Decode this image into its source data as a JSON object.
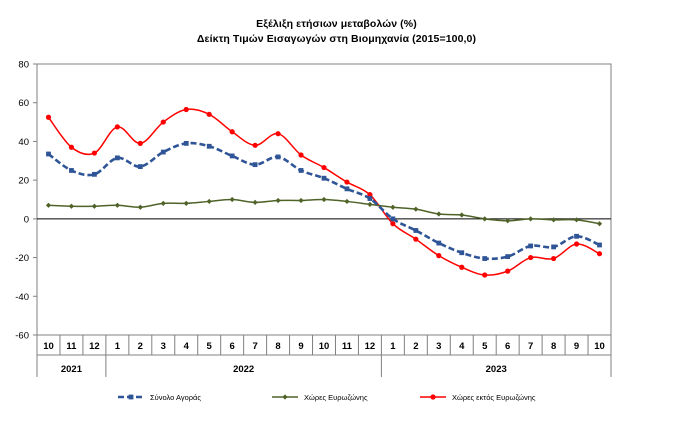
{
  "chart_data": {
    "type": "line",
    "title": "Εξέλιξη ετήσιων μεταβολών (%)",
    "subtitle": "Δείκτη Τιμών Εισαγωγών στη Βιομηχανία (2015=100,0)",
    "categories": [
      "10",
      "11",
      "12",
      "1",
      "2",
      "3",
      "4",
      "5",
      "6",
      "7",
      "8",
      "9",
      "10",
      "11",
      "12",
      "1",
      "2",
      "3",
      "4",
      "5",
      "6",
      "7",
      "8",
      "9",
      "10"
    ],
    "years": [
      {
        "label": "2021",
        "from": 0,
        "to": 2
      },
      {
        "label": "2022",
        "from": 3,
        "to": 14
      },
      {
        "label": "2023",
        "from": 15,
        "to": 24
      }
    ],
    "ylim": [
      -60,
      80
    ],
    "yticks": [
      -60,
      -40,
      -20,
      0,
      20,
      40,
      60,
      80
    ],
    "grid": false,
    "legend_position": "bottom",
    "series": [
      {
        "name": "Σύνολο Αγοράς",
        "color": "#2f5597",
        "style": "dashed-square",
        "values": [
          33.5,
          25,
          23,
          31.5,
          27,
          34.5,
          39,
          37.5,
          32.5,
          28,
          32,
          25,
          21,
          15.5,
          10.5,
          0,
          -6,
          -12.5,
          -17.5,
          -20.5,
          -19.5,
          -14,
          -14.5,
          -9,
          -13.5
        ]
      },
      {
        "name": "Χώρες Ευρωζώνης",
        "color": "#4f6228",
        "style": "solid-diamond",
        "values": [
          7,
          6.5,
          6.5,
          7,
          6,
          8,
          8,
          9,
          10,
          8.5,
          9.5,
          9.5,
          10,
          9,
          7.5,
          6,
          5,
          2.5,
          2,
          0,
          -1,
          0,
          -0.5,
          -0.5,
          -2.5
        ]
      },
      {
        "name": "Χώρες εκτός Ευρωζώνης",
        "color": "#ff0000",
        "style": "solid-circle",
        "values": [
          52.5,
          37,
          34,
          47.5,
          39,
          50,
          56.5,
          54,
          45,
          38,
          44,
          33,
          26.5,
          19,
          12.5,
          -2.5,
          -10.5,
          -19,
          -25,
          -29,
          -27,
          -20,
          -20.5,
          -13,
          -18
        ]
      }
    ]
  }
}
